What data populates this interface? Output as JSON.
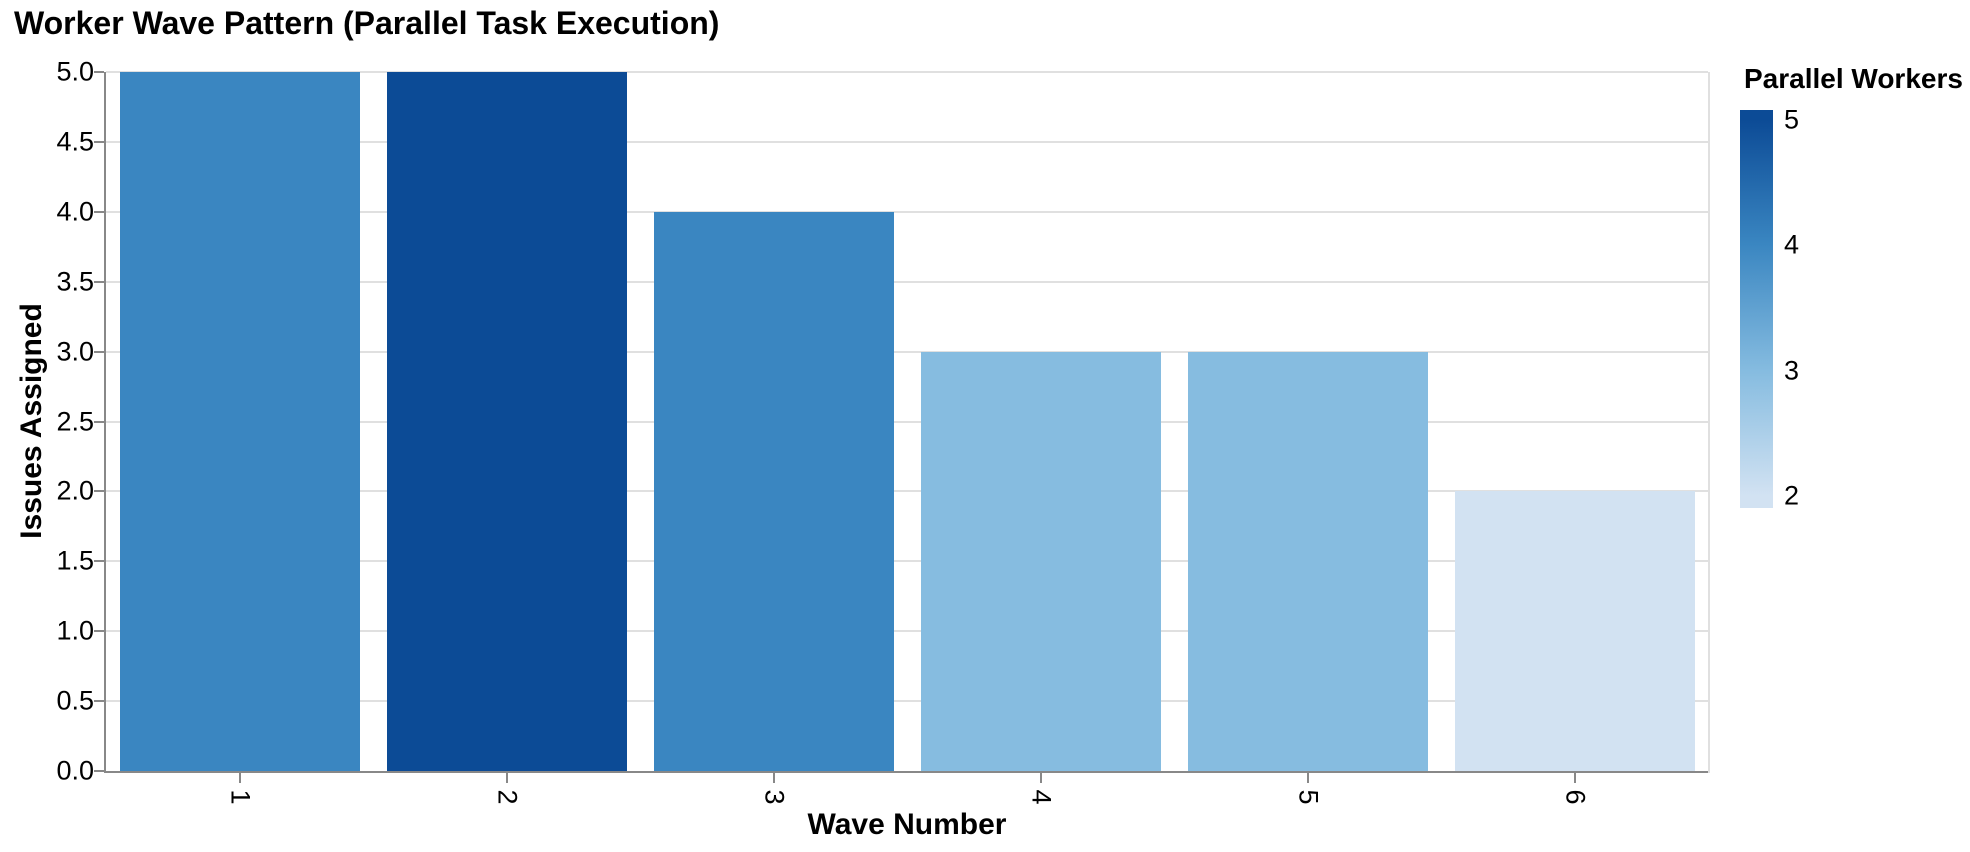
{
  "chart_data": {
    "type": "bar",
    "title": "Worker Wave Pattern (Parallel Task Execution)",
    "xlabel": "Wave Number",
    "ylabel": "Issues Assigned",
    "categories": [
      "1",
      "2",
      "3",
      "4",
      "5",
      "6"
    ],
    "values": [
      5,
      5,
      4,
      3,
      3,
      2
    ],
    "color_series": {
      "name": "Parallel Workers",
      "values": [
        4,
        5,
        4,
        3,
        3,
        2
      ]
    },
    "ylim": [
      0,
      5
    ],
    "yticks": [
      "0.0",
      "0.5",
      "1.0",
      "1.5",
      "2.0",
      "2.5",
      "3.0",
      "3.5",
      "4.0",
      "4.5",
      "5.0"
    ],
    "grid": "horizontal-only",
    "legend": {
      "title": "Parallel Workers",
      "type": "colorbar",
      "position": "right",
      "ticks": [
        "5",
        "4",
        "3",
        "2"
      ],
      "range": [
        2,
        5
      ]
    },
    "palette": {
      "2": "#d2e2f2",
      "3": "#86bce0",
      "4": "#3a86c1",
      "5": "#0c4b96"
    },
    "style_colors": {
      "grid": "#e0e0e0",
      "spine": "#888888",
      "text": "#000000"
    }
  }
}
